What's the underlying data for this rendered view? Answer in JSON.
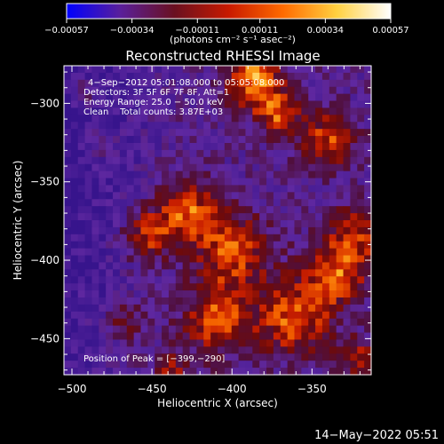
{
  "chart_data": {
    "type": "heatmap",
    "title": "Reconstructed RHESSI Image",
    "xlabel": "Heliocentric X (arcsec)",
    "ylabel": "Heliocentric Y (arcsec)",
    "xlim": [
      -505,
      -313
    ],
    "ylim": [
      -473,
      -276
    ],
    "x_ticks": [
      {
        "value": -500,
        "label": "−500"
      },
      {
        "value": -450,
        "label": "−450"
      },
      {
        "value": -400,
        "label": "−400"
      },
      {
        "value": -350,
        "label": "−350"
      }
    ],
    "y_ticks": [
      {
        "value": -300,
        "label": "−300"
      },
      {
        "value": -350,
        "label": "−350"
      },
      {
        "value": -400,
        "label": "−400"
      },
      {
        "value": -450,
        "label": "−450"
      }
    ],
    "colorbar": {
      "range": [
        -0.00057,
        0.00057
      ],
      "tick_values": [
        -0.00057,
        -0.00034,
        -0.00011,
        0.00011,
        0.00034,
        0.00057
      ],
      "tick_labels": [
        "−0.00057",
        "−0.00034",
        "−0.00011",
        "0.00011",
        "0.00034",
        "0.00057"
      ],
      "unit_label": "(photons cm⁻² s⁻¹ asec⁻²)",
      "colors": [
        "#0000ff",
        "#5a1f9a",
        "#6a1020",
        "#c81a00",
        "#ff6a00",
        "#ffd040",
        "#ffffff"
      ]
    },
    "annotations": [
      "4−Sep−2012 05:01:08.000 to 05:05:08.000",
      "Detectors: 3F 5F 6F 7F 8F, Att=1",
      "Energy Range: 25.0 − 50.0 keV",
      "Clean    Total counts: 3.87E+03"
    ],
    "peak_label": "Position of Peak = [−399,−290]",
    "peak": {
      "x": -399,
      "y": -290
    },
    "grid": false,
    "legend": "colorbar-top"
  },
  "footer": {
    "timestamp": "14−May−2022 05:51"
  }
}
